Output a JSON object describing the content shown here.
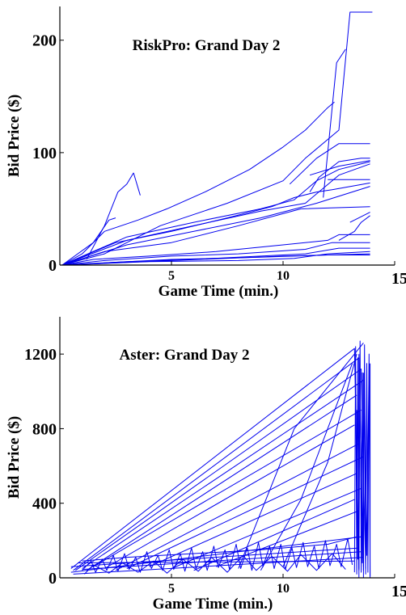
{
  "colors": {
    "series": "#0000ee",
    "axis": "#000000",
    "background": "#ffffff"
  },
  "chart_data": [
    {
      "type": "line",
      "title": "RiskPro: Grand Day 2",
      "xlabel": "Game Time (min.)",
      "ylabel": "Bid Price ($)",
      "xlim": [
        0,
        15
      ],
      "ylim": [
        0,
        230
      ],
      "xticks": [
        5,
        10,
        15
      ],
      "yticks": [
        0,
        100,
        200
      ],
      "legend": "none",
      "grid": false,
      "series": [
        {
          "x": [
            0.1,
            2.0,
            4.5,
            7.5,
            10.0,
            11.0,
            12.5,
            13.0,
            14.0
          ],
          "y": [
            0,
            10,
            35,
            55,
            75,
            95,
            120,
            225,
            225
          ]
        },
        {
          "x": [
            11.8,
            12.4,
            12.8
          ],
          "y": [
            60,
            180,
            192
          ]
        },
        {
          "x": [
            0.1,
            1.0,
            2.0,
            3.5,
            4.8,
            6.5,
            8.5,
            10.0,
            11.0,
            12.0,
            12.3
          ],
          "y": [
            0,
            10,
            30,
            40,
            50,
            65,
            85,
            105,
            120,
            140,
            145
          ]
        },
        {
          "x": [
            0.1,
            1.5,
            2.2,
            2.5
          ],
          "y": [
            0,
            20,
            40,
            42
          ]
        },
        {
          "x": [
            1.2,
            2.0,
            2.6,
            3.0,
            3.3
          ],
          "y": [
            5,
            35,
            65,
            72,
            82
          ]
        },
        {
          "x": [
            3.3,
            3.6
          ],
          "y": [
            82,
            62
          ]
        },
        {
          "x": [
            0.1,
            2.5,
            5.0,
            7.5,
            9.5,
            10.5,
            11.5,
            12.2,
            13.9
          ],
          "y": [
            0,
            20,
            30,
            42,
            52,
            60,
            65,
            67,
            73
          ]
        },
        {
          "x": [
            11.2,
            11.6,
            12.5,
            13.5,
            13.9
          ],
          "y": [
            65,
            78,
            92,
            95,
            95
          ]
        },
        {
          "x": [
            0.1,
            3.0,
            6.0,
            9.0,
            10.5,
            11.5,
            12.5,
            13.9
          ],
          "y": [
            0,
            25,
            38,
            50,
            58,
            75,
            85,
            92
          ]
        },
        {
          "x": [
            0.1,
            3.0,
            6.0,
            9.0,
            11.0,
            12.5,
            13.9
          ],
          "y": [
            0,
            22,
            35,
            48,
            55,
            80,
            90
          ]
        },
        {
          "x": [
            11.2,
            12.5,
            13.9
          ],
          "y": [
            80,
            88,
            93
          ]
        },
        {
          "x": [
            10.3,
            11.5,
            12.5,
            13.9
          ],
          "y": [
            72,
            95,
            108,
            108
          ]
        },
        {
          "x": [
            12.0,
            13.9
          ],
          "y": [
            76,
            76
          ]
        },
        {
          "x": [
            0.1,
            3.0,
            6.0,
            9.0,
            11.5,
            13.9
          ],
          "y": [
            0,
            18,
            30,
            42,
            55,
            70
          ]
        },
        {
          "x": [
            0.1,
            2.0,
            5.0,
            8.0,
            10.8,
            13.9
          ],
          "y": [
            0,
            12,
            20,
            35,
            50,
            52
          ]
        },
        {
          "x": [
            0.1,
            1.5,
            4.0,
            7.0,
            10.0,
            12.0,
            12.5,
            13.9
          ],
          "y": [
            0,
            5,
            8,
            12,
            18,
            22,
            27,
            27
          ]
        },
        {
          "x": [
            0.1,
            2.0,
            5.0,
            8.0,
            11.0,
            12.2,
            13.9
          ],
          "y": [
            0,
            4,
            8,
            10,
            14,
            20,
            20
          ]
        },
        {
          "x": [
            0.1,
            3.0,
            6.0,
            9.0,
            11.0,
            12.5,
            13.9
          ],
          "y": [
            0,
            3,
            5,
            8,
            10,
            15,
            15
          ]
        },
        {
          "x": [
            0.1,
            4.0,
            8.0,
            10.5,
            12.0,
            13.9
          ],
          "y": [
            0,
            3,
            4,
            6,
            10,
            12
          ]
        },
        {
          "x": [
            0.1,
            5.0,
            10.0,
            13.9
          ],
          "y": [
            0,
            4,
            8,
            10
          ]
        },
        {
          "x": [
            0.1,
            5.0,
            9.0,
            12.0,
            13.9
          ],
          "y": [
            0,
            5,
            7,
            9,
            9
          ]
        },
        {
          "x": [
            12.5,
            13.2,
            13.5,
            13.9
          ],
          "y": [
            22,
            30,
            38,
            44
          ]
        },
        {
          "x": [
            13.0,
            13.9
          ],
          "y": [
            38,
            47
          ]
        }
      ]
    },
    {
      "type": "line",
      "title": "Aster: Grand Day 2",
      "xlabel": "Game Time (min.)",
      "ylabel": "Bid Price ($)",
      "xlim": [
        0,
        15
      ],
      "ylim": [
        0,
        1400
      ],
      "xticks": [
        5,
        10,
        15
      ],
      "yticks": [
        0,
        400,
        800,
        1200
      ],
      "legend": "none",
      "grid": false,
      "series": [
        {
          "x": [
            0.5,
            13.2,
            13.4
          ],
          "y": [
            50,
            1230,
            40
          ]
        },
        {
          "x": [
            0.6,
            13.4,
            13.6
          ],
          "y": [
            40,
            1180,
            60
          ]
        },
        {
          "x": [
            0.7,
            13.5,
            13.7
          ],
          "y": [
            40,
            1120,
            50
          ]
        },
        {
          "x": [
            1.0,
            13.6
          ],
          "y": [
            50,
            1060
          ]
        },
        {
          "x": [
            1.2,
            13.3
          ],
          "y": [
            40,
            980
          ]
        },
        {
          "x": [
            1.5,
            13.5
          ],
          "y": [
            60,
            900
          ]
        },
        {
          "x": [
            2.0,
            13.2
          ],
          "y": [
            50,
            820
          ]
        },
        {
          "x": [
            2.5,
            13.4
          ],
          "y": [
            40,
            720
          ]
        },
        {
          "x": [
            3.0,
            13.6
          ],
          "y": [
            50,
            650
          ]
        },
        {
          "x": [
            4.0,
            13.3
          ],
          "y": [
            60,
            560
          ]
        },
        {
          "x": [
            5.0,
            13.5
          ],
          "y": [
            50,
            480
          ]
        },
        {
          "x": [
            6.0,
            13.2
          ],
          "y": [
            40,
            420
          ]
        },
        {
          "x": [
            7.0,
            13.4
          ],
          "y": [
            60,
            360
          ]
        },
        {
          "x": [
            8.0,
            10.5,
            13.6
          ],
          "y": [
            50,
            800,
            1260
          ]
        },
        {
          "x": [
            9.0,
            10.8,
            13.1
          ],
          "y": [
            40,
            420,
            1150
          ]
        },
        {
          "x": [
            10.0,
            12.0,
            13.3
          ],
          "y": [
            60,
            620,
            1200
          ]
        },
        {
          "x": [
            0.5,
            13.5
          ],
          "y": [
            30,
            220
          ]
        },
        {
          "x": [
            0.5,
            13.4
          ],
          "y": [
            60,
            160
          ]
        },
        {
          "x": [
            0.6,
            13.6
          ],
          "y": [
            20,
            110
          ]
        },
        {
          "x": [
            0.8,
            13.2
          ],
          "y": [
            80,
            90
          ]
        },
        {
          "x": [
            1.0,
            13.5
          ],
          "y": [
            45,
            140
          ]
        },
        {
          "x": [
            1.0,
            1.4,
            1.6,
            1.9,
            2.1,
            2.4,
            2.6,
            2.9,
            3.1,
            3.4,
            3.6,
            3.9,
            4.1,
            4.4,
            4.6,
            4.9,
            5.1,
            5.4,
            5.6,
            5.9,
            6.1,
            6.4,
            6.6,
            6.9,
            7.1,
            7.4,
            7.6,
            7.9,
            8.1,
            8.4,
            8.6,
            8.9,
            9.1,
            9.4,
            9.6,
            9.9,
            10.1,
            10.4,
            10.6,
            10.9,
            11.1,
            11.4,
            11.6,
            11.9,
            12.1,
            12.4,
            12.6,
            12.9,
            13.1
          ],
          "y": [
            40,
            90,
            30,
            100,
            40,
            120,
            35,
            130,
            45,
            110,
            30,
            140,
            50,
            120,
            40,
            150,
            45,
            130,
            35,
            160,
            50,
            140,
            40,
            170,
            55,
            150,
            45,
            180,
            50,
            160,
            40,
            190,
            60,
            170,
            50,
            180,
            45,
            160,
            55,
            190,
            60,
            170,
            50,
            200,
            65,
            180,
            60,
            210,
            70
          ]
        },
        {
          "x": [
            1.1,
            1.5,
            2.2,
            2.8,
            3.5,
            4.2,
            4.8,
            5.5,
            6.2,
            6.8,
            7.5,
            8.2,
            8.8,
            9.5,
            10.2,
            10.8,
            11.5,
            12.2,
            12.8
          ],
          "y": [
            20,
            70,
            25,
            80,
            30,
            90,
            25,
            100,
            35,
            110,
            30,
            120,
            40,
            115,
            35,
            125,
            40,
            130,
            45
          ]
        },
        {
          "x": [
            1.0,
            3.0,
            6.0,
            9.0,
            12.0,
            13.3
          ],
          "y": [
            90,
            110,
            130,
            150,
            180,
            220
          ]
        },
        {
          "x": [
            13.2,
            13.25,
            13.3,
            13.35,
            13.4,
            13.45,
            13.5,
            13.55,
            13.6,
            13.65,
            13.7,
            13.75,
            13.8,
            13.85,
            13.9
          ],
          "y": [
            30,
            1240,
            20,
            1180,
            50,
            1270,
            30,
            1100,
            40,
            1250,
            20,
            1150,
            30,
            1200,
            10
          ]
        },
        {
          "x": [
            13.3,
            13.35,
            13.45,
            13.55,
            13.65,
            13.75,
            13.85
          ],
          "y": [
            900,
            100,
            1000,
            80,
            980,
            120,
            1150
          ]
        },
        {
          "x": [
            13.9,
            13.9
          ],
          "y": [
            0,
            1150
          ]
        },
        {
          "x": [
            13.4,
            13.4
          ],
          "y": [
            0,
            1200
          ]
        },
        {
          "x": [
            13.6,
            13.6
          ],
          "y": [
            0,
            1100
          ]
        }
      ]
    }
  ]
}
